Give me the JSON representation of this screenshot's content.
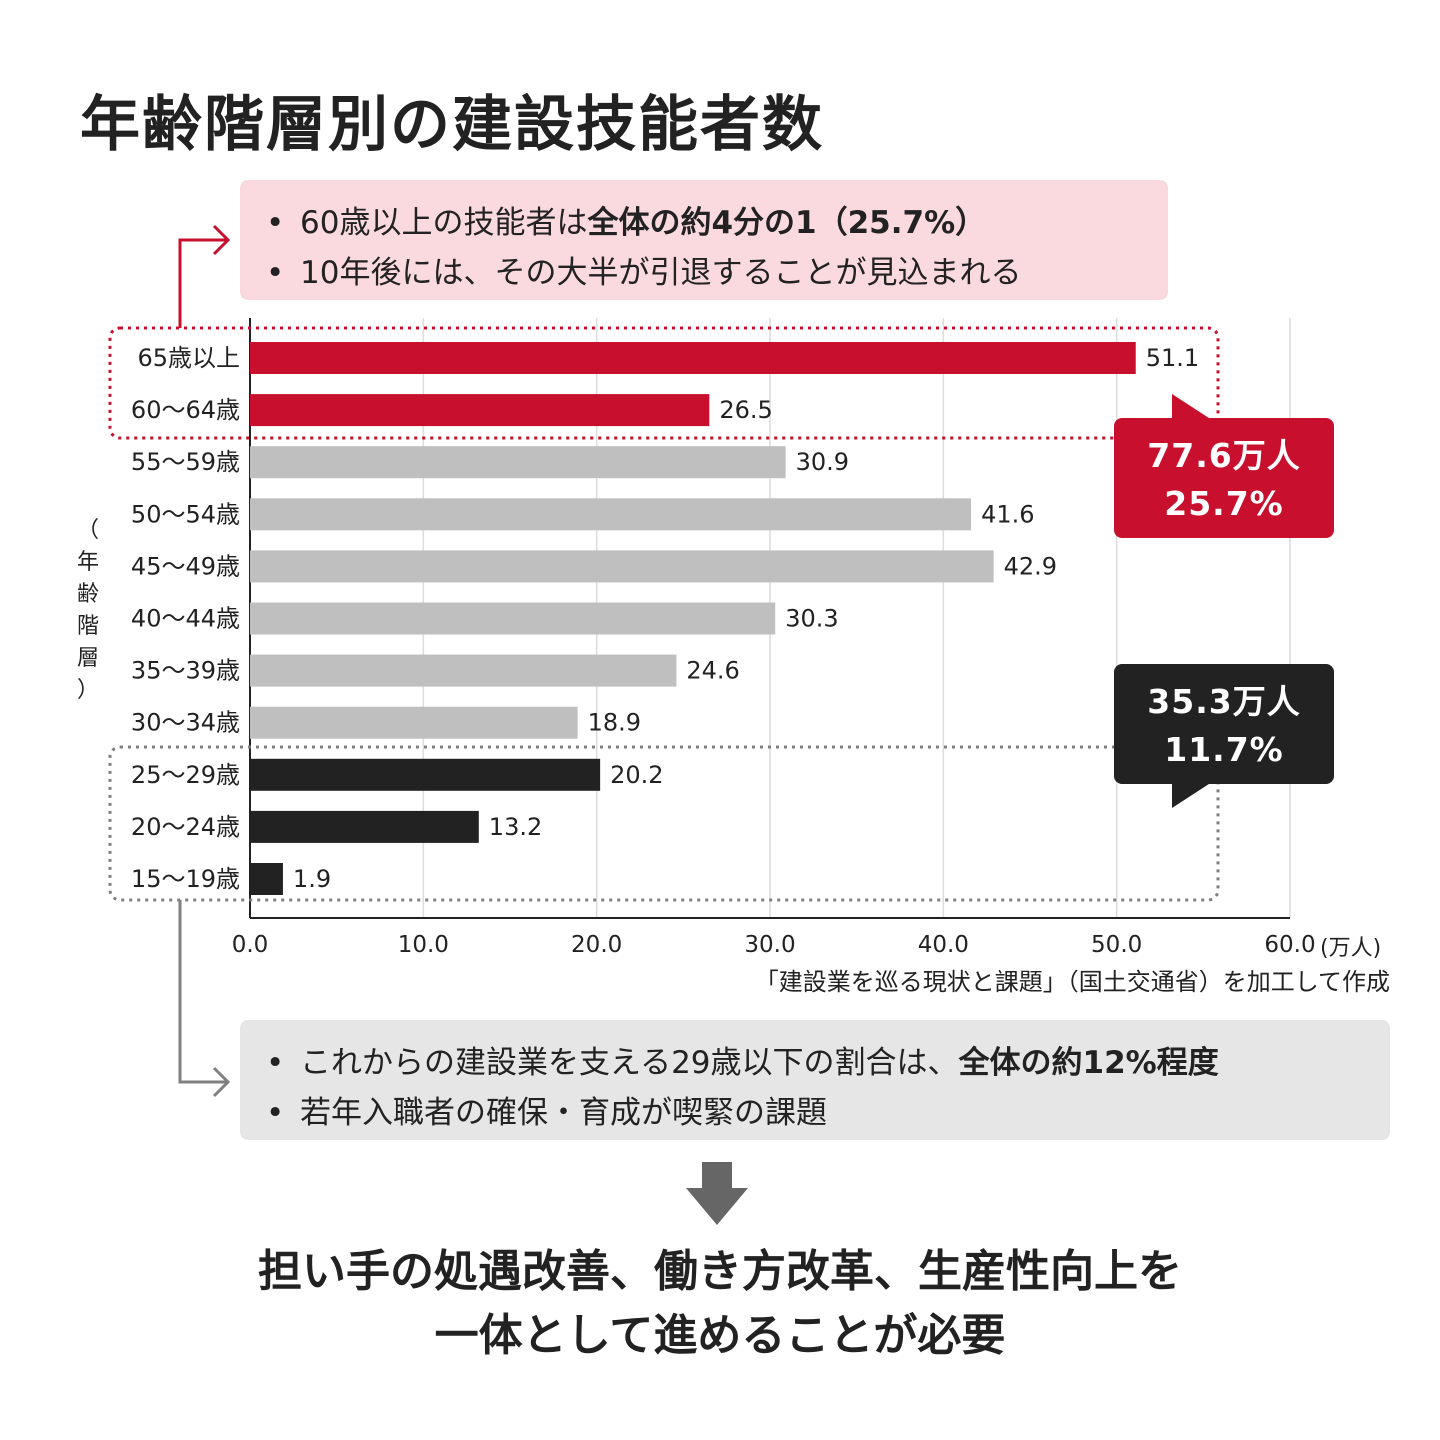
{
  "title": "年齢階層別の建設技能者数",
  "note_top": {
    "line1_prefix": "60歳以上の技能者は",
    "line1_bold": "全体の約4分の1（25.7%）",
    "line2": "10年後には、その大半が引退することが見込まれる"
  },
  "note_bottom": {
    "line1_prefix": "これからの建設業を支える29歳以下の割合は、",
    "line1_bold": "全体の約12%程度",
    "line2": "若年入職者の確保・育成が喫緊の課題"
  },
  "bullet": "•",
  "callout_red": {
    "line1": "77.6万人",
    "line2": "25.7%"
  },
  "callout_black": {
    "line1": "35.3万人",
    "line2": "11.7%"
  },
  "axis_title_chars": [
    "（",
    "年",
    "齢",
    "階",
    "層",
    "）"
  ],
  "unit_label": "(万人)",
  "source": "「建設業を巡る現状と課題」（国土交通省）を加工して作成",
  "conclusion": {
    "line1": "担い手の処遇改善、働き方改革、生産性向上を",
    "line2": "一体として進めることが必要"
  },
  "colors": {
    "red": "#c8102e",
    "gray": "#bfbfbf",
    "black": "#222222",
    "pink_bg": "#fadadf",
    "gray_bg": "#e6e6e6"
  },
  "chart_data": {
    "type": "bar",
    "orientation": "horizontal",
    "categories": [
      "65歳以上",
      "60〜64歳",
      "55〜59歳",
      "50〜54歳",
      "45〜49歳",
      "40〜44歳",
      "35〜39歳",
      "30〜34歳",
      "25〜29歳",
      "20〜24歳",
      "15〜19歳"
    ],
    "values": [
      51.1,
      26.5,
      30.9,
      41.6,
      42.9,
      30.3,
      24.6,
      18.9,
      20.2,
      13.2,
      1.9
    ],
    "value_labels": [
      "51.1",
      "26.5",
      "30.9",
      "41.6",
      "42.9",
      "30.3",
      "24.6",
      "18.9",
      "20.2",
      "13.2",
      "1.9"
    ],
    "groups": [
      "red",
      "red",
      "gray",
      "gray",
      "gray",
      "gray",
      "gray",
      "gray",
      "black",
      "black",
      "black"
    ],
    "x_ticks": [
      "0.0",
      "10.0",
      "20.0",
      "30.0",
      "40.0",
      "50.0",
      "60.0"
    ],
    "xlim": [
      0,
      60
    ],
    "grid": true
  }
}
